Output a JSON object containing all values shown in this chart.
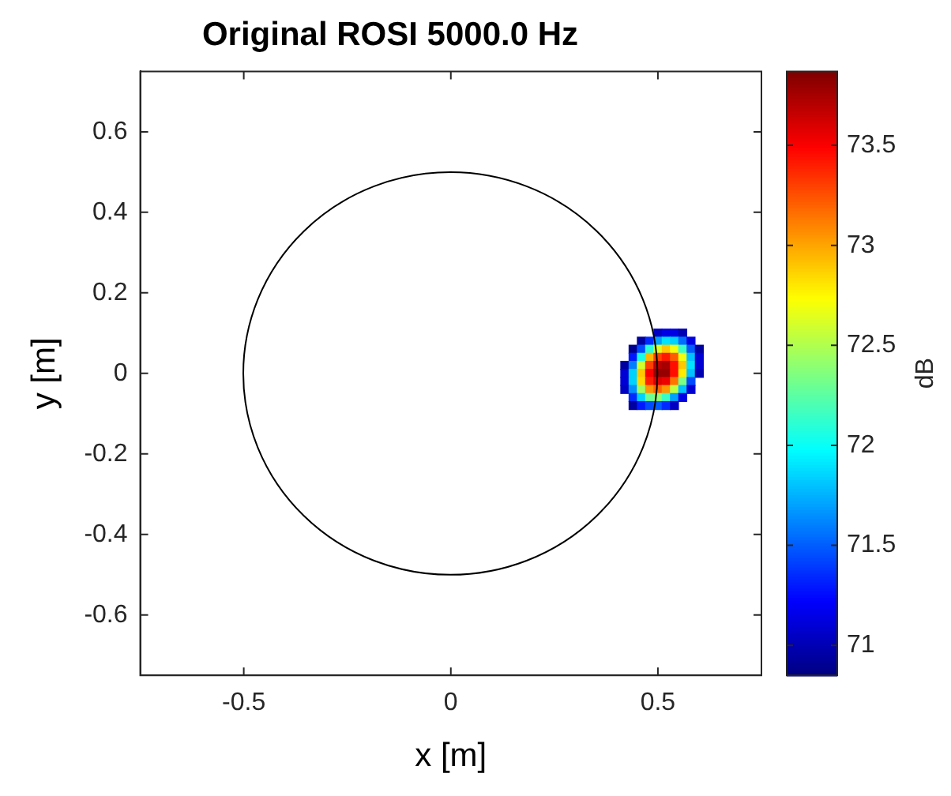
{
  "chart_data": {
    "type": "scatter",
    "title": "Original ROSI 5000.0 Hz",
    "xlabel": "x [m]",
    "ylabel": "y [m]",
    "clabel": "dB",
    "xlim": [
      -0.75,
      0.75
    ],
    "ylim": [
      -0.75,
      0.75
    ],
    "xticks": [
      -0.5,
      0,
      0.5
    ],
    "yticks": [
      -0.6,
      -0.4,
      -0.2,
      0,
      0.2,
      0.4,
      0.6
    ],
    "clim": [
      70.85,
      73.87
    ],
    "cticks": [
      71,
      71.5,
      72,
      72.5,
      73,
      73.5
    ],
    "series": [
      {
        "type": "scatter",
        "marker": "square",
        "x": [
          0.5,
          0.52,
          0.54,
          0.56,
          0.46,
          0.48,
          0.5,
          0.52,
          0.54,
          0.56,
          0.58,
          0.44,
          0.46,
          0.48,
          0.5,
          0.52,
          0.54,
          0.56,
          0.58,
          0.6,
          0.44,
          0.46,
          0.48,
          0.5,
          0.52,
          0.54,
          0.56,
          0.58,
          0.6,
          0.42,
          0.44,
          0.46,
          0.48,
          0.5,
          0.52,
          0.54,
          0.56,
          0.58,
          0.6,
          0.42,
          0.44,
          0.46,
          0.48,
          0.5,
          0.52,
          0.54,
          0.56,
          0.58,
          0.6,
          0.42,
          0.44,
          0.46,
          0.48,
          0.5,
          0.52,
          0.54,
          0.56,
          0.58,
          0.42,
          0.44,
          0.46,
          0.48,
          0.5,
          0.52,
          0.54,
          0.56,
          0.58,
          0.44,
          0.46,
          0.48,
          0.5,
          0.52,
          0.54,
          0.56,
          0.44,
          0.46,
          0.48,
          0.5,
          0.52,
          0.54
        ],
        "values": [
          0.1,
          0.1,
          0.1,
          0.1,
          0.08,
          0.08,
          0.08,
          0.08,
          0.08,
          0.08,
          0.08,
          0.06,
          0.06,
          0.06,
          0.06,
          0.06,
          0.06,
          0.06,
          0.06,
          0.06,
          0.04,
          0.04,
          0.04,
          0.04,
          0.04,
          0.04,
          0.04,
          0.04,
          0.04,
          0.02,
          0.02,
          0.02,
          0.02,
          0.02,
          0.02,
          0.02,
          0.02,
          0.02,
          0.02,
          0,
          0,
          0,
          0,
          0,
          0,
          0,
          0,
          0,
          0,
          -0.02,
          -0.02,
          -0.02,
          -0.02,
          -0.02,
          -0.02,
          -0.02,
          -0.02,
          -0.02,
          -0.04,
          -0.04,
          -0.04,
          -0.04,
          -0.04,
          -0.04,
          -0.04,
          -0.04,
          -0.04,
          -0.06,
          -0.06,
          -0.06,
          -0.06,
          -0.06,
          -0.06,
          -0.06,
          -0.08,
          -0.08,
          -0.08,
          -0.08,
          -0.08,
          -0.08
        ],
        "cvalues": [
          71.05,
          71.15,
          71.15,
          71.0,
          70.95,
          71.35,
          71.7,
          71.9,
          71.85,
          71.55,
          71.15,
          70.9,
          71.45,
          72.1,
          72.65,
          72.9,
          72.7,
          72.15,
          71.5,
          70.95,
          71.3,
          72.05,
          72.95,
          73.3,
          73.42,
          73.22,
          72.7,
          71.8,
          71.1,
          70.95,
          71.6,
          72.6,
          73.3,
          73.7,
          73.75,
          73.45,
          72.9,
          71.9,
          71.1,
          71.1,
          71.85,
          72.9,
          73.5,
          73.8,
          73.8,
          73.45,
          72.8,
          71.8,
          71.0,
          71.1,
          71.85,
          72.85,
          73.4,
          73.6,
          73.55,
          73.15,
          72.35,
          71.45,
          71.05,
          71.65,
          72.45,
          73.05,
          73.2,
          73.05,
          72.55,
          71.8,
          71.1,
          71.35,
          71.85,
          72.3,
          72.4,
          72.15,
          71.7,
          71.15,
          70.95,
          71.3,
          71.45,
          71.5,
          71.35,
          71.05
        ]
      }
    ]
  }
}
